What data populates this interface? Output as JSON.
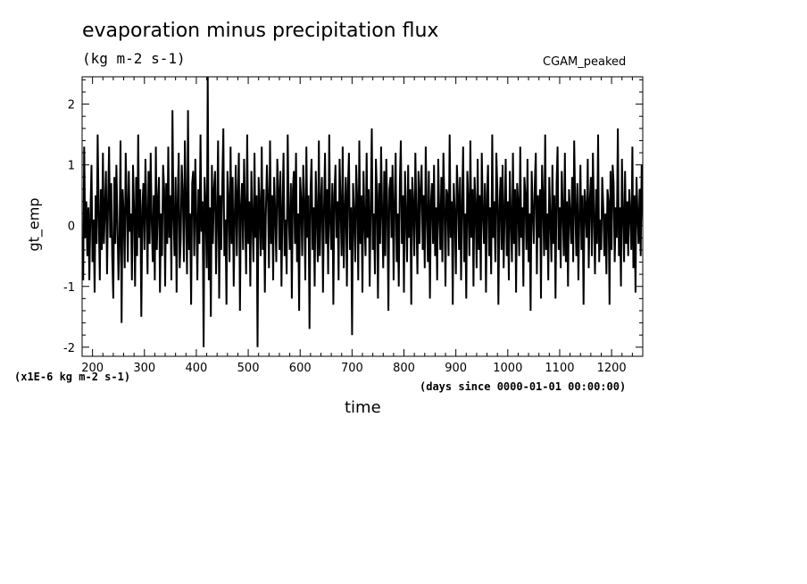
{
  "chart_data": {
    "type": "line",
    "title": "evaporation minus precipitation flux",
    "units_label": "(kg m-2 s-1)",
    "model_label": "CGAM_peaked",
    "ylabel": "gt_emp",
    "xlabel": "time",
    "scale_note": "(x1E-6 kg m-2 s-1)",
    "time_origin_note": "(days since 0000-01-01 00:00:00)",
    "xlim": [
      180,
      1260
    ],
    "ylim": [
      -2.15,
      2.45
    ],
    "x_ticks": [
      200,
      300,
      400,
      500,
      600,
      700,
      800,
      900,
      1000,
      1100,
      1200
    ],
    "y_ticks": [
      -2,
      -1,
      0,
      1,
      2
    ],
    "x_tick_labels": [
      "200",
      "300",
      "400",
      "500",
      "600",
      "700",
      "800",
      "900",
      "1000",
      "1100",
      "1200"
    ],
    "y_tick_labels": [
      "-2",
      "-1",
      "0",
      "1",
      "2"
    ],
    "grid": false,
    "series": [
      {
        "color": "#000000",
        "x_start": 180,
        "x_step": 2,
        "values": [
          -0.4,
          -0.9,
          1.3,
          -0.2,
          0.4,
          -0.5,
          0.3,
          -0.9,
          0.2,
          1.0,
          -0.6,
          0.1,
          -1.1,
          0.5,
          -0.3,
          1.5,
          0.2,
          -0.9,
          0.6,
          -0.4,
          1.2,
          -0.3,
          0.3,
          0.9,
          -0.8,
          0.4,
          1.3,
          -0.2,
          0.7,
          -0.5,
          -1.2,
          0.8,
          -0.3,
          1.0,
          0.1,
          -0.9,
          -0.2,
          1.4,
          -1.6,
          0.6,
          0.2,
          -0.7,
          1.2,
          0.4,
          -0.6,
          0.9,
          -0.1,
          0.2,
          -0.9,
          1.0,
          0.3,
          -1.0,
          0.8,
          -0.5,
          1.5,
          -0.2,
          0.6,
          -1.5,
          0.3,
          0.7,
          -0.4,
          1.1,
          0.2,
          -0.8,
          0.9,
          -0.3,
          1.2,
          0.1,
          -0.6,
          0.5,
          -0.9,
          1.3,
          -0.4,
          0.4,
          0.8,
          -1.1,
          0.2,
          -0.5,
          1.0,
          0.6,
          -1.0,
          0.7,
          -0.3,
          1.3,
          -0.2,
          0.5,
          -0.9,
          1.9,
          0.2,
          -0.5,
          0.8,
          -1.1,
          0.4,
          1.2,
          -0.7,
          -0.2,
          1.0,
          0.5,
          -0.6,
          1.4,
          0.3,
          -0.8,
          1.9,
          -0.4,
          0.2,
          -1.3,
          0.7,
          0.9,
          -0.5,
          1.1,
          0.2,
          -0.9,
          0.6,
          -0.3,
          1.5,
          -0.1,
          0.4,
          -2.0,
          0.8,
          0.3,
          -0.7,
          2.5,
          -0.9,
          0.3,
          -1.5,
          1.0,
          -0.3,
          0.6,
          0.9,
          -0.8,
          0.2,
          1.4,
          -1.2,
          0.5,
          -0.4,
          0.7,
          1.6,
          -0.5,
          0.1,
          -1.3,
          0.9,
          0.4,
          -0.6,
          1.3,
          -0.3,
          0.8,
          -1.0,
          0.2,
          1.0,
          -0.5,
          0.5,
          1.2,
          -1.4,
          0.3,
          0.7,
          -0.4,
          1.1,
          0.2,
          -0.8,
          1.5,
          -0.3,
          0.4,
          -1.0,
          0.9,
          0.1,
          -0.6,
          1.2,
          -0.2,
          0.5,
          -2.0,
          0.8,
          0.3,
          -0.5,
          1.3,
          -0.4,
          0.6,
          -1.1,
          0.2,
          1.0,
          0.4,
          -0.7,
          1.4,
          -0.3,
          0.5,
          -0.9,
          0.8,
          0.2,
          -0.6,
          1.1,
          0.6,
          -0.4,
          0.9,
          -1.0,
          0.3,
          1.2,
          -0.5,
          0.1,
          -0.8,
          1.5,
          0.2,
          -0.4,
          0.7,
          -1.2,
          0.6,
          0.9,
          -0.3,
          1.2,
          -0.6,
          0.2,
          -1.4,
          0.8,
          0.4,
          -0.5,
          1.0,
          0.3,
          -0.9,
          1.3,
          -0.2,
          0.5,
          -1.7,
          0.6,
          1.1,
          -0.4,
          0.3,
          -1.0,
          0.9,
          0.2,
          -0.6,
          1.4,
          -0.5,
          0.4,
          0.8,
          -1.1,
          0.3,
          1.2,
          -0.3,
          0.6,
          -0.8,
          1.5,
          0.1,
          -0.4,
          0.7,
          -1.3,
          0.5,
          1.0,
          -0.2,
          0.4,
          -0.9,
          1.1,
          0.3,
          -0.5,
          1.3,
          -0.7,
          0.2,
          0.8,
          -1.0,
          0.6,
          1.2,
          -0.4,
          0.3,
          -1.8,
          0.7,
          0.2,
          -0.6,
          1.0,
          0.4,
          -0.9,
          1.4,
          -0.3,
          0.5,
          -1.1,
          0.9,
          0.1,
          -0.5,
          1.2,
          -0.2,
          0.6,
          -1.0,
          0.3,
          1.6,
          -0.4,
          0.2,
          -0.8,
          1.1,
          0.5,
          -1.2,
          0.7,
          -0.3,
          1.3,
          0.2,
          -0.7,
          0.9,
          -0.5,
          1.1,
          0.3,
          -1.4,
          0.6,
          0.8,
          -0.2,
          1.0,
          -0.9,
          0.4,
          1.2,
          -0.6,
          0.2,
          -1.0,
          0.7,
          1.4,
          -0.3,
          0.5,
          -1.1,
          0.9,
          0.2,
          -0.6,
          1.0,
          -0.2,
          0.6,
          -1.3,
          0.8,
          0.3,
          -0.5,
          1.2,
          0.1,
          -0.8,
          0.9,
          -0.3,
          0.6,
          1.0,
          -0.4,
          0.5,
          -0.7,
          1.3,
          0.2,
          -0.6,
          0.9,
          -1.2,
          0.4,
          0.7,
          -0.3,
          1.0,
          -0.5,
          0.3,
          -0.9,
          1.1,
          0.2,
          -0.4,
          0.8,
          -0.6,
          1.2,
          0.3,
          -1.0,
          0.6,
          0.5,
          -0.5,
          1.5,
          -0.2,
          0.4,
          -1.3,
          0.7,
          0.2,
          -0.8,
          1.0,
          0.5,
          -0.4,
          0.8,
          -0.9,
          0.3,
          1.3,
          -0.6,
          0.2,
          -1.2,
          0.9,
          0.4,
          -0.5,
          1.4,
          -0.2,
          0.6,
          -1.0,
          0.8,
          0.3,
          -0.7,
          1.1,
          -0.4,
          0.5,
          -0.9,
          1.2,
          0.2,
          -0.3,
          0.7,
          -1.1,
          0.5,
          1.0,
          -0.5,
          0.3,
          -0.8,
          1.5,
          -0.2,
          0.4,
          -0.6,
          1.2,
          0.6,
          -1.3,
          0.3,
          0.8,
          -0.4,
          1.0,
          -0.7,
          0.2,
          1.1,
          -0.5,
          0.4,
          -0.9,
          0.9,
          0.1,
          -0.6,
          1.2,
          -0.3,
          0.6,
          -1.1,
          0.7,
          0.4,
          -0.5,
          1.3,
          -0.2,
          0.3,
          -1.0,
          0.8,
          0.5,
          -0.4,
          1.1,
          -0.6,
          0.2,
          -1.4,
          0.9,
          0.3,
          -0.3,
          0.7,
          1.2,
          -0.8,
          0.5,
          -0.2,
          0.6,
          -1.2,
          1.0,
          0.4,
          -0.5,
          1.5,
          -0.4,
          0.2,
          -0.9,
          0.8,
          0.1,
          -0.6,
          1.0,
          -0.3,
          0.5,
          -1.2,
          0.7,
          1.3,
          -0.4,
          0.3,
          -0.7,
          0.9,
          0.2,
          -0.5,
          1.2,
          -0.6,
          0.4,
          -1.0,
          0.6,
          0.2,
          -0.3,
          0.8,
          -0.6,
          1.4,
          0.3,
          -0.5,
          0.7,
          -0.9,
          0.2,
          1.0,
          -0.4,
          0.5,
          -1.3,
          0.6,
          0.3,
          -0.2,
          1.1,
          -0.7,
          0.4,
          0.8,
          -0.5,
          1.2,
          0.2,
          -0.8,
          0.6,
          -0.3,
          1.5,
          -0.6,
          0.1,
          -0.4,
          0.8,
          0.3,
          -0.5,
          0.2,
          -0.8,
          0.6,
          0.4,
          -1.3,
          0.9,
          -0.4,
          1.0,
          0.7,
          -0.6,
          0.3,
          -0.2,
          1.6,
          -0.5,
          0.3,
          -1.0,
          1.1,
          0.2,
          -0.6,
          0.9,
          -0.3,
          0.4,
          -0.5,
          0.6,
          0.2,
          -0.4,
          1.3,
          -0.7,
          0.5,
          -1.1,
          0.8,
          0.2,
          -0.3,
          0.6,
          -0.5,
          1.0,
          0.4,
          -0.6,
          0.3
        ]
      }
    ]
  }
}
